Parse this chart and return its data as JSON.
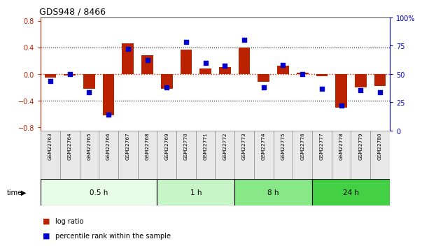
{
  "title": "GDS948 / 8466",
  "samples": [
    "GSM22763",
    "GSM22764",
    "GSM22765",
    "GSM22766",
    "GSM22767",
    "GSM22768",
    "GSM22769",
    "GSM22770",
    "GSM22771",
    "GSM22772",
    "GSM22773",
    "GSM22774",
    "GSM22775",
    "GSM22776",
    "GSM22777",
    "GSM22778",
    "GSM22779",
    "GSM22780"
  ],
  "log_ratio": [
    -0.05,
    -0.02,
    -0.22,
    -0.62,
    0.46,
    0.28,
    -0.22,
    0.37,
    0.08,
    0.1,
    0.4,
    -0.12,
    0.12,
    0.02,
    -0.03,
    -0.5,
    -0.2,
    -0.18
  ],
  "percentile": [
    44,
    50,
    34,
    14,
    72,
    62,
    38,
    78,
    60,
    57,
    80,
    38,
    58,
    50,
    37,
    22,
    36,
    34
  ],
  "time_groups": [
    {
      "label": "0.5 h",
      "start": 0,
      "end": 6,
      "color": "#e8fde8"
    },
    {
      "label": "1 h",
      "start": 6,
      "end": 10,
      "color": "#c8f5c8"
    },
    {
      "label": "8 h",
      "start": 10,
      "end": 14,
      "color": "#88e888"
    },
    {
      "label": "24 h",
      "start": 14,
      "end": 18,
      "color": "#44d044"
    }
  ],
  "ylim": [
    -0.85,
    0.85
  ],
  "yticks_left": [
    -0.8,
    -0.4,
    0.0,
    0.4,
    0.8
  ],
  "yticks_right": [
    0,
    25,
    50,
    75,
    100
  ],
  "bar_color": "#bb2200",
  "dot_color": "#0000cc",
  "zero_line_color": "#dd2200",
  "legend_labels": [
    "log ratio",
    "percentile rank within the sample"
  ],
  "legend_colors": [
    "#bb2200",
    "#0000cc"
  ],
  "bar_width": 0.6,
  "dot_size": 18
}
